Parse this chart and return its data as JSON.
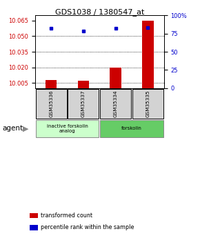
{
  "title": "GDS1038 / 1380547_at",
  "samples": [
    "GSM35336",
    "GSM35337",
    "GSM35334",
    "GSM35335"
  ],
  "bar_values": [
    10.008,
    10.007,
    10.02,
    10.065
  ],
  "percentile_values": [
    82,
    79,
    82,
    83
  ],
  "ylim_left": [
    10.0,
    10.07
  ],
  "ylim_right": [
    0,
    100
  ],
  "yticks_left": [
    10.005,
    10.02,
    10.035,
    10.05,
    10.065
  ],
  "yticks_right": [
    0,
    25,
    50,
    75,
    100
  ],
  "bar_color": "#cc0000",
  "percentile_color": "#0000cc",
  "bar_width": 0.35,
  "groups": [
    {
      "label": "inactive forskolin\nanalog",
      "span": [
        0,
        2
      ],
      "color": "#ccffcc"
    },
    {
      "label": "forskolin",
      "span": [
        2,
        4
      ],
      "color": "#66cc66"
    }
  ],
  "agent_label": "agent",
  "legend_items": [
    {
      "color": "#cc0000",
      "label": "transformed count"
    },
    {
      "color": "#0000cc",
      "label": "percentile rank within the sample"
    }
  ],
  "sample_box_color": "#d3d3d3",
  "left_axis_color": "#cc0000",
  "right_axis_color": "#0000cc",
  "grid_yticks": [
    10.005,
    10.02,
    10.035,
    10.05
  ]
}
